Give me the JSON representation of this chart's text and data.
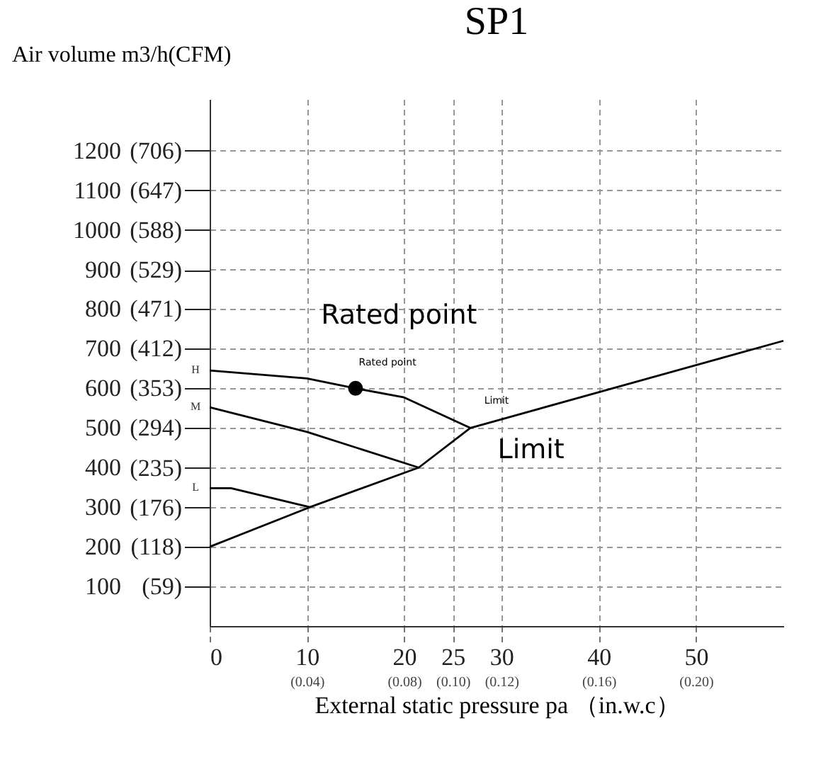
{
  "chart_data": {
    "type": "line",
    "title": "SP1",
    "xlabel": "External static pressure pa （in.w.c）",
    "ylabel": "Air volume m3/h(CFM)",
    "xlim": [
      0,
      59
    ],
    "ylim": [
      0,
      1330
    ],
    "xticks": [
      0,
      10,
      20,
      25,
      30,
      40,
      50
    ],
    "x2lim": [
      0,
      0.236
    ],
    "x2ticks": [
      {
        "value": 0.04,
        "label": "(0.04)"
      },
      {
        "value": 0.08,
        "label": "(0.08)"
      },
      {
        "value": 0.1,
        "label": "(0.10)"
      },
      {
        "value": 0.12,
        "label": "(0.12)"
      },
      {
        "value": 0.16,
        "label": "(0.16)"
      },
      {
        "value": 0.2,
        "label": "(0.20)"
      }
    ],
    "yticks": [
      100,
      200,
      300,
      400,
      500,
      600,
      700,
      800,
      900,
      1000,
      1100,
      1200
    ],
    "y2lim": [
      0,
      782.5
    ],
    "y2ticks": [
      {
        "value": 59,
        "label": "(59)"
      },
      {
        "value": 118,
        "label": "(118)"
      },
      {
        "value": 176,
        "label": "(176)"
      },
      {
        "value": 235,
        "label": "(235)"
      },
      {
        "value": 294,
        "label": "(294)"
      },
      {
        "value": 353,
        "label": "(353)"
      },
      {
        "value": 412,
        "label": "(412)"
      },
      {
        "value": 471,
        "label": "(471)"
      },
      {
        "value": 529,
        "label": "(529)"
      },
      {
        "value": 588,
        "label": "(588)"
      },
      {
        "value": 647,
        "label": "(647)"
      },
      {
        "value": 706,
        "label": "(706)"
      }
    ],
    "grid": true,
    "marker": "none",
    "line_style": "solid",
    "series": [
      {
        "name": "H",
        "color": "#000000",
        "x": [
          0,
          10,
          15,
          20,
          26.8
        ],
        "values": [
          645,
          625,
          600,
          577,
          500
        ]
      },
      {
        "name": "M",
        "color": "#000000",
        "x": [
          0,
          10,
          21.5
        ],
        "values": [
          552,
          490,
          400
        ]
      },
      {
        "name": "L",
        "color": "#000000",
        "x": [
          0,
          2.2,
          10.3
        ],
        "values": [
          348,
          348,
          300
        ]
      },
      {
        "color": "#000000",
        "x": [
          0,
          10.3,
          21.5,
          26.8,
          59
        ],
        "values": [
          200,
          300,
          400,
          500,
          720
        ]
      },
      {
        "type": "scatter",
        "marker": "circle",
        "color": "#000000",
        "x": [
          15
        ],
        "values": [
          600
        ]
      }
    ],
    "annotations": [
      "Rated point",
      "Rated point",
      "Limit",
      "Limit"
    ]
  }
}
